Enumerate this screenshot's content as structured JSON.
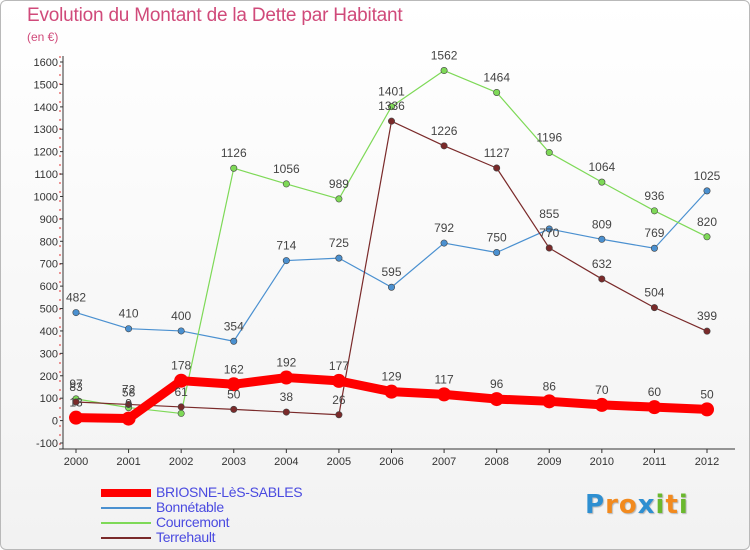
{
  "header": {
    "title": "Evolution du Montant de la Dette par Habitant",
    "subtitle": "(en €)"
  },
  "logo": {
    "letters": [
      "P",
      "r",
      "o",
      "x",
      "i",
      "t",
      "i"
    ],
    "colors": [
      "#2e8fd1",
      "#f28a1e",
      "#f28a1e",
      "#2e8fd1",
      "#6ab82e",
      "#f28a1e",
      "#6ab82e"
    ]
  },
  "chart_data": {
    "type": "line",
    "title": "Evolution du Montant de la Dette par Habitant",
    "subtitle": "(en €)",
    "xlabel": "",
    "ylabel": "",
    "x": [
      "2000",
      "2001",
      "2002",
      "2003",
      "2004",
      "2005",
      "2006",
      "2007",
      "2008",
      "2009",
      "2010",
      "2011",
      "2012"
    ],
    "ylim": [
      -100,
      1600
    ],
    "yticks": [
      -100,
      0,
      100,
      200,
      300,
      400,
      500,
      600,
      700,
      800,
      900,
      1000,
      1100,
      1200,
      1300,
      1400,
      1500,
      1600
    ],
    "grid": false,
    "legend_position": "bottom-left",
    "series": [
      {
        "name": "BRIOSNE-LèS-SABLES",
        "color": "#ff0000",
        "values": [
          13,
          9,
          178,
          162,
          192,
          177,
          129,
          117,
          96,
          86,
          70,
          60,
          50
        ],
        "labels": [
          "13",
          "9",
          "178",
          "162",
          "192",
          "177",
          "129",
          "117",
          "96",
          "86",
          "70",
          "60",
          "50"
        ]
      },
      {
        "name": "Bonnétable",
        "color": "#4a90d0",
        "values": [
          482,
          410,
          400,
          354,
          714,
          725,
          595,
          792,
          750,
          855,
          809,
          769,
          1025
        ],
        "labels": [
          "482",
          "410",
          "400",
          "354",
          "714",
          "725",
          "595",
          "792",
          "750",
          "855",
          "809",
          "769",
          "1025"
        ]
      },
      {
        "name": "Courcemont",
        "color": "#7ed957",
        "values": [
          97,
          58,
          32,
          1126,
          1056,
          989,
          1401,
          1562,
          1464,
          1196,
          1064,
          936,
          820
        ],
        "labels": [
          "97",
          "58",
          "",
          "1126",
          "1056",
          "989",
          "1401",
          "1562",
          "1464",
          "1196",
          "1064",
          "936",
          "820"
        ]
      },
      {
        "name": "Terrehault",
        "color": "#7a2a2a",
        "values": [
          83,
          72,
          61,
          50,
          38,
          26,
          1336,
          1226,
          1127,
          770,
          632,
          504,
          399
        ],
        "labels": [
          "83",
          "72",
          "61",
          "50",
          "38",
          "26",
          "1336",
          "1226",
          "1127",
          "770",
          "632",
          "504",
          "399"
        ]
      }
    ]
  }
}
